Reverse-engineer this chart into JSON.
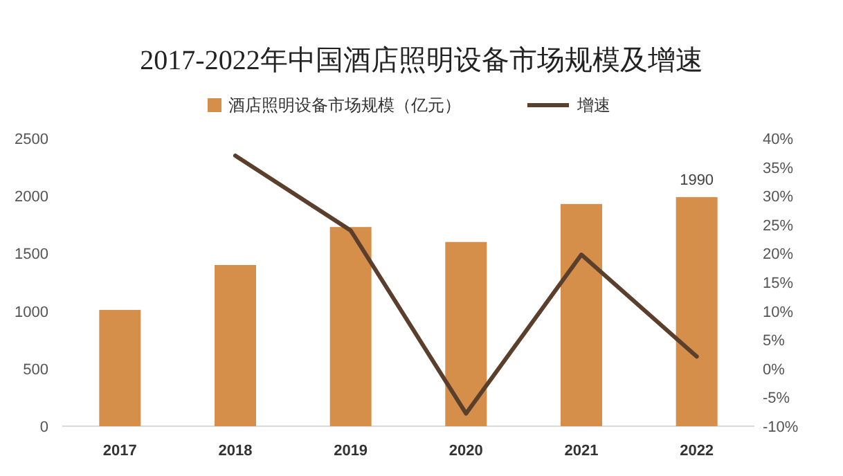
{
  "chart_data": {
    "type": "bar",
    "title": "2017-2022年中国酒店照明设备市场规模及增速",
    "categories": [
      "2017",
      "2018",
      "2019",
      "2020",
      "2021",
      "2022"
    ],
    "series": [
      {
        "name": "酒店照明设备市场规模（亿元）",
        "color": "#d68f4b",
        "values": [
          1010,
          1400,
          1730,
          1600,
          1930,
          1990
        ],
        "value_labels": [
          null,
          null,
          null,
          null,
          null,
          "1990"
        ]
      },
      {
        "name": "增速",
        "type": "line",
        "axis": "y2",
        "color": "#5a3f2c",
        "values": [
          null,
          37,
          24,
          -7.8,
          19.8,
          2.1
        ]
      }
    ],
    "ylim": [
      0,
      2500
    ],
    "yticks": [
      0,
      500,
      1000,
      1500,
      2000,
      2500
    ],
    "y2lim": [
      -10,
      40
    ],
    "y2ticks": [
      {
        "value": -10,
        "label": "-10%"
      },
      {
        "value": -5,
        "label": "-5%"
      },
      {
        "value": 0,
        "label": "0%"
      },
      {
        "value": 5,
        "label": "5%"
      },
      {
        "value": 10,
        "label": "10%"
      },
      {
        "value": 15,
        "label": "15%"
      },
      {
        "value": 20,
        "label": "20%"
      },
      {
        "value": 25,
        "label": "25%"
      },
      {
        "value": 30,
        "label": "30%"
      },
      {
        "value": 35,
        "label": "35%"
      },
      {
        "value": 40,
        "label": "40%"
      }
    ],
    "legend": "top"
  }
}
